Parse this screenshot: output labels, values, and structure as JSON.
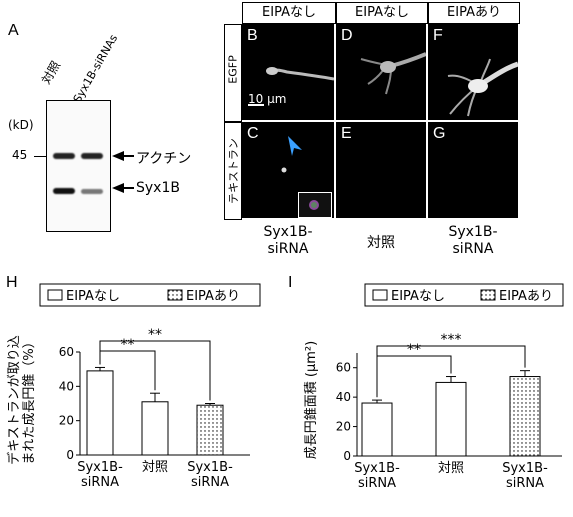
{
  "panel_labels": {
    "A": "A",
    "H": "H",
    "I": "I"
  },
  "blot": {
    "lane_labels": [
      "対照",
      "Syx1B-siRNAs"
    ],
    "kd_label": "(kD)",
    "marker": "45",
    "bands": [
      {
        "name": "アクチン",
        "arrow_text": "アクチン"
      },
      {
        "name": "Syx1B",
        "arrow_text": "Syx1B"
      }
    ]
  },
  "micro": {
    "col_headers": [
      "EIPAなし",
      "EIPAなし",
      "EIPAあり"
    ],
    "row_labels": [
      "EGFP",
      "テキストラン"
    ],
    "panel_letters": [
      "B",
      "D",
      "F",
      "C",
      "E",
      "G"
    ],
    "scalebar_label": "10 µm",
    "col_footers": [
      "Syx1B-\nsiRNA",
      "対照",
      "Syx1B-\nsiRNA"
    ]
  },
  "chart_data": [
    {
      "type": "bar",
      "panel": "H",
      "categories": [
        "Syx1B-\nsiRNA",
        "対照",
        "Syx1B-\nsiRNA"
      ],
      "values": [
        49,
        31,
        29
      ],
      "errors": [
        2,
        5,
        1
      ],
      "fills": [
        "open",
        "open",
        "dotted"
      ],
      "legend": [
        {
          "label": "EIPAなし",
          "style": "open"
        },
        {
          "label": "EIPAあり",
          "style": "dotted"
        }
      ],
      "ylabel": "デキストランが取り込\nまれた成長円錐（%）",
      "yticks": [
        0,
        20,
        40,
        60
      ],
      "ylim": [
        0,
        60
      ],
      "significance": [
        {
          "from": 0,
          "to": 1,
          "label": "**"
        },
        {
          "from": 0,
          "to": 2,
          "label": "**"
        }
      ]
    },
    {
      "type": "bar",
      "panel": "I",
      "categories": [
        "Syx1B-\nsiRNA",
        "対照",
        "Syx1B-\nsiRNA"
      ],
      "values": [
        36,
        50,
        54
      ],
      "errors": [
        2,
        4,
        4
      ],
      "fills": [
        "open",
        "open",
        "dotted"
      ],
      "legend": [
        {
          "label": "EIPAなし",
          "style": "open"
        },
        {
          "label": "EIPAあり",
          "style": "dotted"
        }
      ],
      "ylabel": "成長円錐面積 (µm²)",
      "yticks": [
        0,
        20,
        40,
        60
      ],
      "ylim": [
        0,
        70
      ],
      "significance": [
        {
          "from": 0,
          "to": 1,
          "label": "**"
        },
        {
          "from": 0,
          "to": 2,
          "label": "***"
        }
      ]
    }
  ]
}
